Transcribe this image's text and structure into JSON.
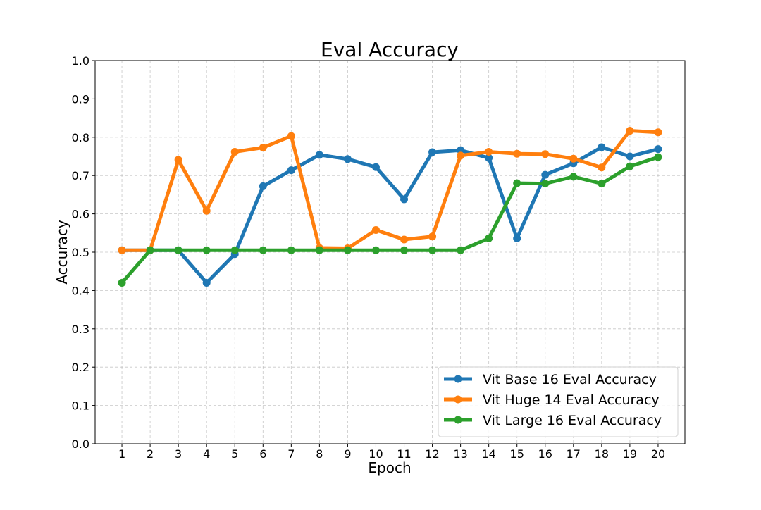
{
  "chart_data": {
    "type": "line",
    "title": "Eval Accuracy",
    "xlabel": "Epoch",
    "ylabel": "Accuracy",
    "x": [
      1,
      2,
      3,
      4,
      5,
      6,
      7,
      8,
      9,
      10,
      11,
      12,
      13,
      14,
      15,
      16,
      17,
      18,
      19,
      20
    ],
    "xlim": [
      0.05,
      20.95
    ],
    "ylim": [
      0.0,
      1.0
    ],
    "yticks": [
      0.0,
      0.1,
      0.2,
      0.3,
      0.4,
      0.5,
      0.6,
      0.7,
      0.8,
      0.9,
      1.0
    ],
    "ytick_labels": [
      "0.0",
      "0.1",
      "0.2",
      "0.3",
      "0.4",
      "0.5",
      "0.6",
      "0.7",
      "0.8",
      "0.9",
      "1.0"
    ],
    "xtick_labels": [
      "1",
      "2",
      "3",
      "4",
      "5",
      "6",
      "7",
      "8",
      "9",
      "10",
      "11",
      "12",
      "13",
      "14",
      "15",
      "16",
      "17",
      "18",
      "19",
      "20"
    ],
    "grid": true,
    "legend_position": "lower-right",
    "series": [
      {
        "name": "Vit Base 16 Eval Accuracy",
        "color": "#1f77b4",
        "values": [
          0.505,
          0.505,
          0.505,
          0.42,
          0.495,
          0.672,
          0.714,
          0.754,
          0.743,
          0.722,
          0.638,
          0.761,
          0.766,
          0.746,
          0.536,
          0.702,
          0.732,
          0.774,
          0.75,
          0.769
        ]
      },
      {
        "name": "Vit Huge 14 Eval Accuracy",
        "color": "#ff7f0e",
        "values": [
          0.505,
          0.505,
          0.741,
          0.608,
          0.762,
          0.773,
          0.803,
          0.511,
          0.51,
          0.558,
          0.533,
          0.541,
          0.752,
          0.762,
          0.757,
          0.756,
          0.744,
          0.721,
          0.817,
          0.813
        ]
      },
      {
        "name": "Vit Large 16 Eval Accuracy",
        "color": "#2ca02c",
        "values": [
          0.42,
          0.505,
          0.505,
          0.505,
          0.505,
          0.505,
          0.505,
          0.505,
          0.505,
          0.505,
          0.505,
          0.505,
          0.505,
          0.536,
          0.68,
          0.679,
          0.697,
          0.679,
          0.724,
          0.748
        ]
      }
    ]
  }
}
